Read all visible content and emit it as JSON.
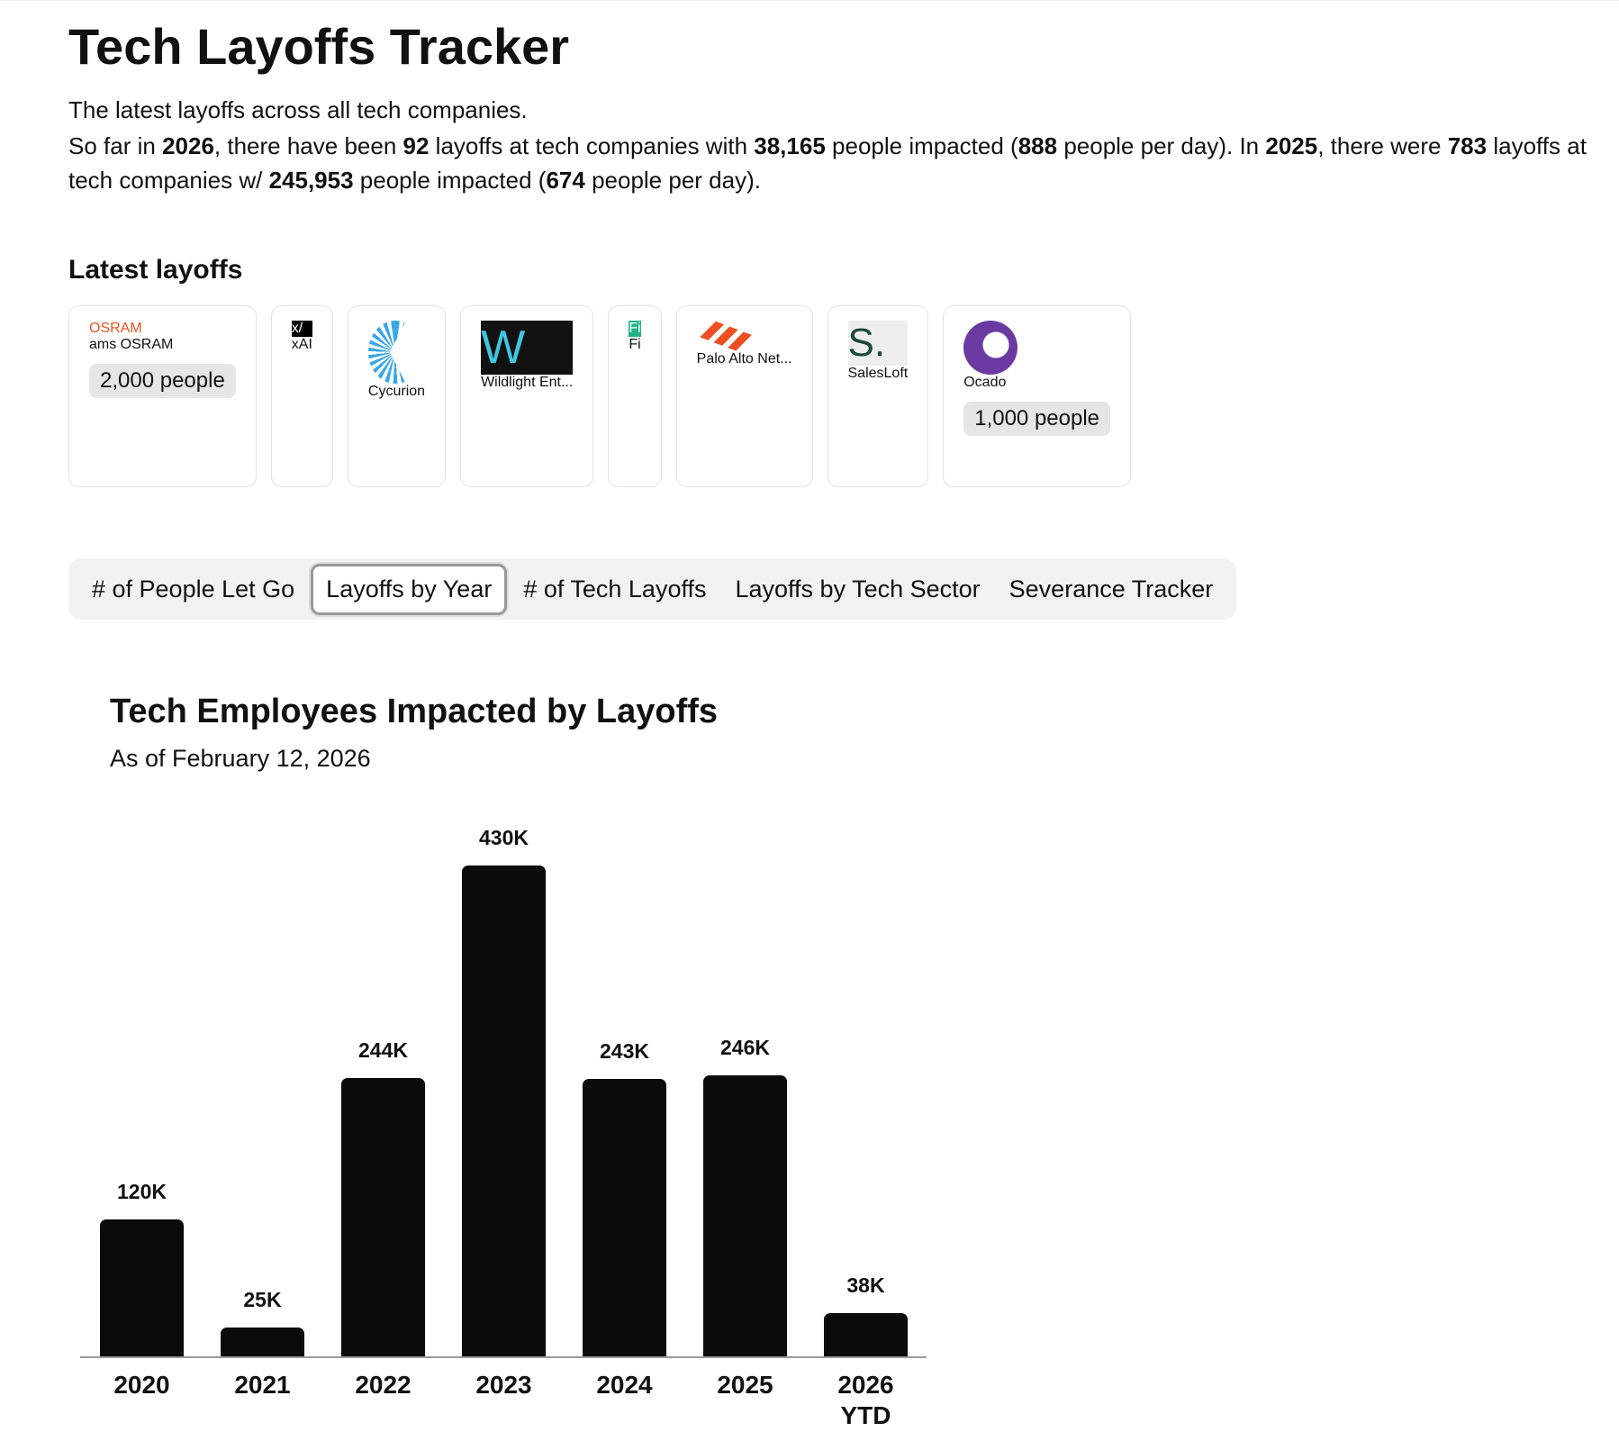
{
  "header": {
    "title": "Tech Layoffs Tracker",
    "intro": "The latest layoffs across all tech companies.",
    "summary": [
      "So far in ",
      "2026",
      ", there have been ",
      "92",
      " layoffs at tech companies with ",
      "38,165",
      " people impacted (",
      "888",
      " people per day). In ",
      "2025",
      ", there were ",
      "783",
      " layoffs at tech companies w/ ",
      "245,953",
      " people impacted (",
      "674",
      " people per day)."
    ]
  },
  "latest": {
    "heading": "Latest layoffs",
    "cards": [
      {
        "name": "ams OSRAM",
        "people": "2,000 people",
        "logo_text": "OSRAM"
      },
      {
        "name": "xAI",
        "logo_text": "x/"
      },
      {
        "name": "Cycurion"
      },
      {
        "name": "Wildlight Ent...",
        "logo_text": "W"
      },
      {
        "name": "Fi",
        "logo_text": "Fi"
      },
      {
        "name": "Palo Alto Net..."
      },
      {
        "name": "SalesLoft",
        "logo_text": "S."
      },
      {
        "name": "Ocado",
        "people": "1,000 people"
      }
    ]
  },
  "tabs": {
    "items": [
      "# of People Let Go",
      "Layoffs by Year",
      "# of Tech Layoffs",
      "Layoffs by Tech Sector",
      "Severance Tracker"
    ],
    "active": 1
  },
  "chart_data": {
    "type": "bar",
    "title": "Tech Employees Impacted by Layoffs",
    "subtitle": "As of February 12, 2026",
    "categories": [
      "2020",
      "2021",
      "2022",
      "2023",
      "2024",
      "2025",
      "2026 YTD"
    ],
    "values": [
      120000,
      25000,
      244000,
      430000,
      243000,
      246000,
      38000
    ],
    "value_labels": [
      "120K",
      "25K",
      "244K",
      "430K",
      "243K",
      "246K",
      "38K"
    ],
    "color": "#0b0b0b"
  }
}
